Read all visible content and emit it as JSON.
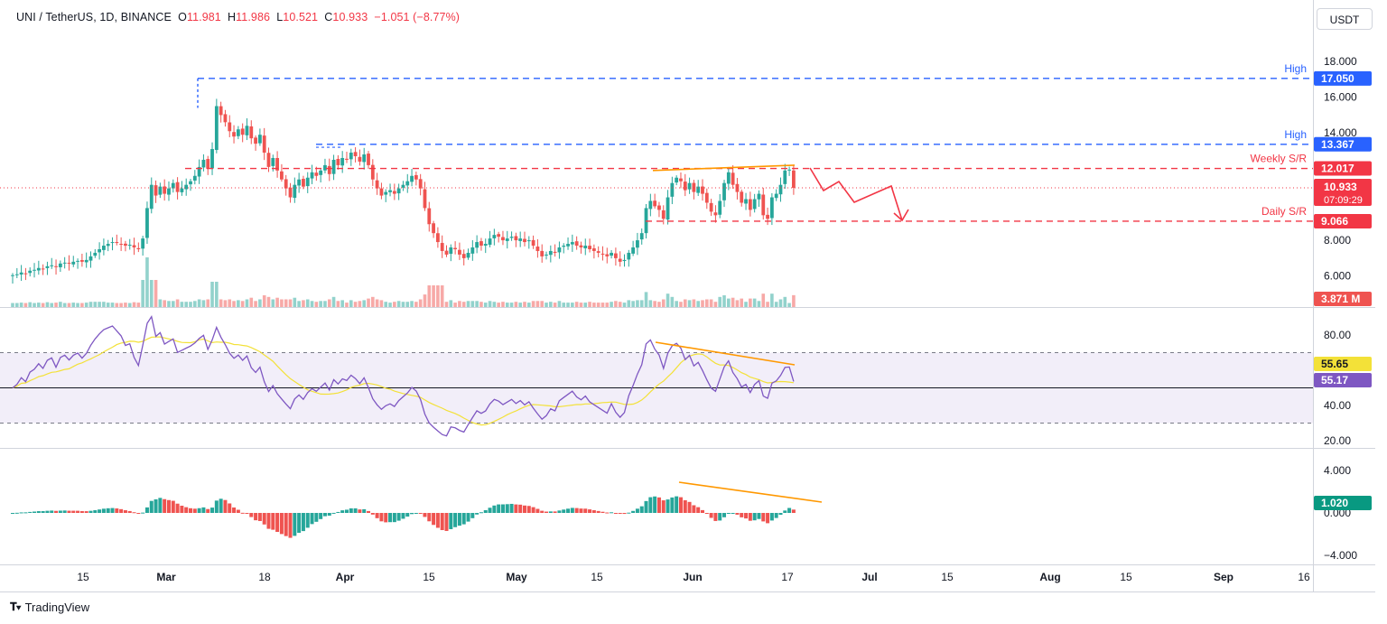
{
  "header": {
    "symbol": "UNI / TetherUS, 1D, BINANCE",
    "open_label": "O",
    "open": "11.981",
    "high_label": "H",
    "high": "11.986",
    "low_label": "L",
    "low": "10.521",
    "close_label": "C",
    "close": "10.933",
    "change": "−1.051 (−8.77%)"
  },
  "currency_button": "USDT",
  "branding": "TradingView",
  "colors": {
    "up": "#26a69a",
    "down": "#ef5350",
    "rsi": "#7e57c2",
    "rsi_ma": "#f3e138",
    "blue_level": "#2962ff",
    "red_level": "#f23645",
    "trend": "#ff9800"
  },
  "chart_data": [
    {
      "type": "candlestick",
      "panel": "price",
      "x_axis_ticks": [
        "15",
        "Mar",
        "18",
        "Apr",
        "15",
        "May",
        "15",
        "Jun",
        "17",
        "Jul",
        "15",
        "Aug",
        "15",
        "Sep",
        "16"
      ],
      "y_ticks": [
        "18.000",
        "16.000",
        "14.000",
        "8.000",
        "6.000"
      ],
      "ylim": [
        4.3,
        18.8
      ],
      "closes": [
        6.05,
        6.1,
        6.2,
        6.15,
        6.3,
        6.35,
        6.45,
        6.4,
        6.55,
        6.6,
        6.5,
        6.7,
        6.75,
        6.7,
        6.8,
        6.85,
        6.8,
        6.9,
        7.1,
        7.3,
        7.5,
        7.7,
        7.8,
        7.9,
        7.85,
        7.8,
        7.7,
        7.75,
        7.6,
        7.5,
        8.1,
        9.8,
        11.1,
        10.5,
        11.0,
        10.6,
        10.9,
        11.2,
        10.7,
        10.9,
        11.1,
        11.3,
        11.6,
        12.1,
        12.5,
        12.0,
        13.1,
        15.5,
        15.0,
        14.6,
        14.1,
        13.8,
        14.2,
        13.9,
        14.4,
        13.7,
        13.4,
        13.9,
        12.9,
        12.1,
        12.6,
        11.9,
        11.4,
        10.9,
        10.4,
        11.1,
        11.4,
        11.0,
        11.5,
        11.8,
        11.6,
        11.9,
        12.2,
        11.7,
        12.5,
        12.2,
        12.6,
        12.5,
        12.9,
        12.7,
        12.4,
        12.8,
        12.2,
        11.4,
        10.9,
        10.5,
        10.7,
        10.8,
        10.6,
        10.9,
        11.1,
        11.3,
        11.6,
        11.4,
        10.9,
        9.8,
        8.9,
        8.4,
        7.9,
        7.4,
        7.2,
        7.6,
        7.5,
        7.2,
        7.0,
        7.3,
        7.6,
        7.9,
        7.7,
        7.8,
        8.1,
        8.3,
        8.2,
        8.0,
        8.1,
        8.2,
        8.0,
        8.1,
        7.9,
        8.0,
        7.7,
        7.4,
        7.1,
        7.2,
        7.4,
        7.3,
        7.6,
        7.7,
        7.8,
        7.9,
        7.7,
        7.6,
        7.7,
        7.5,
        7.4,
        7.3,
        7.2,
        7.1,
        7.3,
        7.0,
        6.8,
        6.9,
        7.3,
        7.6,
        8.0,
        8.4,
        9.8,
        10.2,
        9.9,
        9.7,
        9.2,
        10.4,
        11.2,
        11.5,
        11.3,
        10.8,
        11.2,
        10.7,
        11.0,
        10.6,
        10.1,
        9.6,
        9.4,
        10.2,
        11.2,
        11.8,
        11.1,
        10.7,
        10.1,
        10.3,
        9.7,
        10.3,
        10.6,
        9.4,
        9.2,
        10.4,
        10.6,
        11.1,
        11.9,
        11.95,
        10.933
      ],
      "horizontal_levels": [
        {
          "label": "High",
          "value": 17.05,
          "value_text": "17.050",
          "color": "#2962ff"
        },
        {
          "label": "High",
          "value": 13.367,
          "value_text": "13.367",
          "color": "#2962ff"
        },
        {
          "label": "Weekly S/R",
          "value": 12.017,
          "value_text": "12.017",
          "color": "#f23645"
        },
        {
          "label": "Daily S/R",
          "value": 9.066,
          "value_text": "9.066",
          "color": "#f23645"
        }
      ],
      "last_price": {
        "value": 10.933,
        "text": "10.933",
        "countdown": "07:09:29"
      },
      "volume_label": "3.871 M"
    },
    {
      "type": "line",
      "panel": "rsi",
      "y_ticks": [
        "80.00",
        "40.00",
        "20.00"
      ],
      "ylim": [
        15,
        100
      ],
      "bands": [
        70,
        50,
        30
      ],
      "series": [
        {
          "key": "rsi",
          "value_text": "55.17"
        },
        {
          "key": "rsi_ma",
          "value_text": "55.65"
        }
      ]
    },
    {
      "type": "bar",
      "panel": "macd_histogram",
      "y_ticks": [
        "4.000",
        "0.000",
        "−4.000"
      ],
      "ylim": [
        -5.5,
        6.0
      ],
      "last_value_text": "1.020"
    }
  ]
}
